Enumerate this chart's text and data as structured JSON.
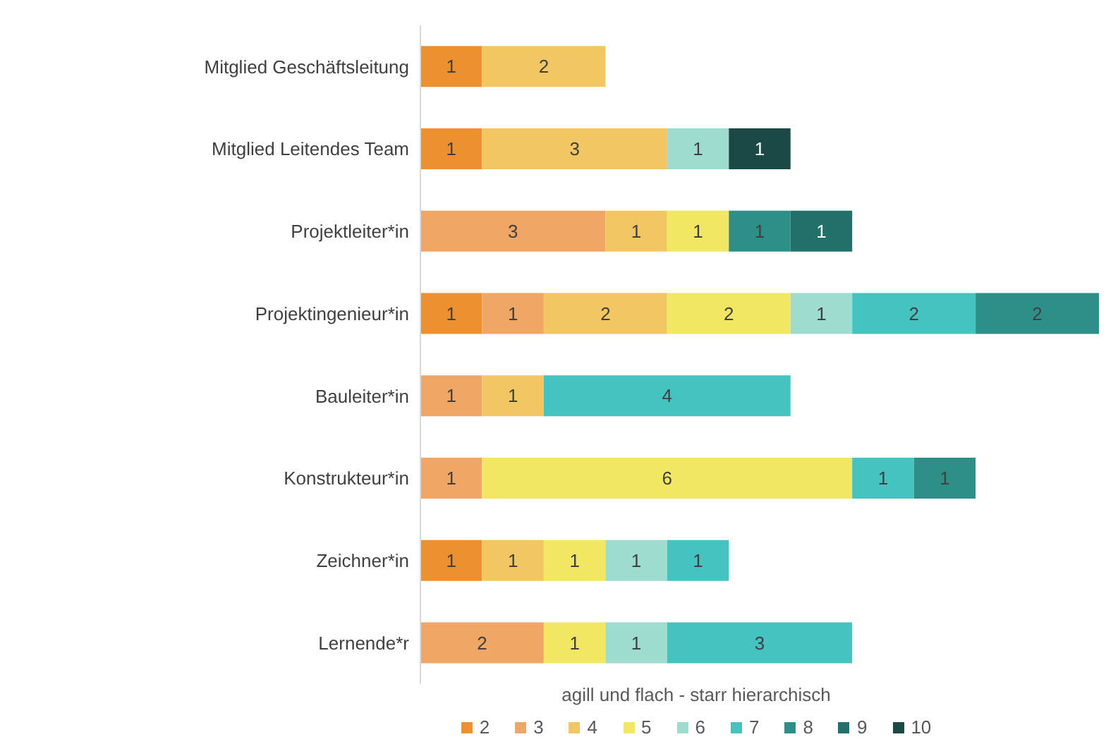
{
  "chart_data": {
    "type": "bar",
    "orientation": "horizontal",
    "stacked": true,
    "data_labels": true,
    "legend": "bottom",
    "grid": false,
    "legend_title": "agill und flach - starr hierarchisch",
    "categories": [
      "Mitglied Geschäftsleitung",
      "Mitglied Leitendes Team",
      "Projektleiter*in",
      "Projektingenieur*in",
      "Bauleiter*in",
      "Konstrukteur*in",
      "Zeichner*in",
      "Lernende*r"
    ],
    "series": [
      {
        "name": "2",
        "color": "#ed9130",
        "values": [
          1,
          1,
          null,
          1,
          null,
          null,
          1,
          null
        ]
      },
      {
        "name": "3",
        "color": "#f0a765",
        "values": [
          null,
          null,
          3,
          1,
          1,
          1,
          null,
          2
        ]
      },
      {
        "name": "4",
        "color": "#f2c763",
        "values": [
          2,
          3,
          1,
          2,
          1,
          null,
          1,
          null
        ]
      },
      {
        "name": "5",
        "color": "#f1e763",
        "values": [
          null,
          null,
          1,
          2,
          null,
          6,
          1,
          1
        ]
      },
      {
        "name": "6",
        "color": "#9edccf",
        "values": [
          null,
          1,
          null,
          1,
          null,
          null,
          1,
          1
        ]
      },
      {
        "name": "7",
        "color": "#44c3c1",
        "values": [
          null,
          null,
          null,
          2,
          4,
          1,
          1,
          3
        ]
      },
      {
        "name": "8",
        "color": "#2e8f89",
        "values": [
          null,
          null,
          1,
          2,
          null,
          1,
          null,
          null
        ]
      },
      {
        "name": "9",
        "color": "#236f6a",
        "values": [
          null,
          null,
          1,
          null,
          null,
          null,
          null,
          null
        ]
      },
      {
        "name": "10",
        "color": "#1b4a46",
        "values": [
          null,
          1,
          null,
          null,
          null,
          null,
          null,
          null
        ]
      }
    ]
  }
}
